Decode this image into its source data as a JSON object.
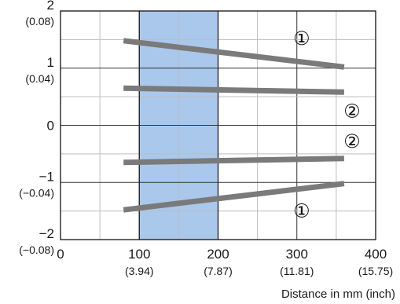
{
  "chart_data": {
    "type": "line",
    "xlabel": "Distance in mm (inch)",
    "ylabel": "",
    "xlim": [
      0,
      400
    ],
    "ylim": [
      -2,
      2
    ],
    "grid": true,
    "x_ticks": [
      {
        "value": 0,
        "label": "0",
        "sub": ""
      },
      {
        "value": 100,
        "label": "100",
        "sub": "(3.94)"
      },
      {
        "value": 200,
        "label": "200",
        "sub": "(7.87)"
      },
      {
        "value": 300,
        "label": "300",
        "sub": "(11.81)"
      },
      {
        "value": 400,
        "label": "400",
        "sub": "(15.75)"
      }
    ],
    "y_ticks": [
      {
        "value": 2,
        "label": "2",
        "sub": "(0.08)"
      },
      {
        "value": 1,
        "label": "1",
        "sub": "(0.04)"
      },
      {
        "value": 0,
        "label": "0",
        "sub": ""
      },
      {
        "value": -1,
        "label": "−1",
        "sub": "(−0.04)"
      },
      {
        "value": -2,
        "label": "−2",
        "sub": "(−0.08)"
      }
    ],
    "highlight_band": {
      "x_from": 100,
      "x_to": 200,
      "color": "#a9c8ec"
    },
    "series": [
      {
        "marker": "①",
        "color": "#7a7a7a",
        "x": [
          80,
          360
        ],
        "y": [
          1.48,
          1.02
        ],
        "marker_at": [
          306,
          1.52
        ]
      },
      {
        "marker": "②",
        "color": "#7a7a7a",
        "x": [
          80,
          360
        ],
        "y": [
          0.65,
          0.58
        ],
        "marker_at": [
          370,
          0.25
        ]
      },
      {
        "marker": "②",
        "color": "#7a7a7a",
        "x": [
          80,
          360
        ],
        "y": [
          -0.65,
          -0.58
        ],
        "marker_at": [
          370,
          -0.28
        ]
      },
      {
        "marker": "①",
        "color": "#7a7a7a",
        "x": [
          80,
          360
        ],
        "y": [
          -1.48,
          -1.02
        ],
        "marker_at": [
          306,
          -1.5
        ]
      }
    ]
  }
}
